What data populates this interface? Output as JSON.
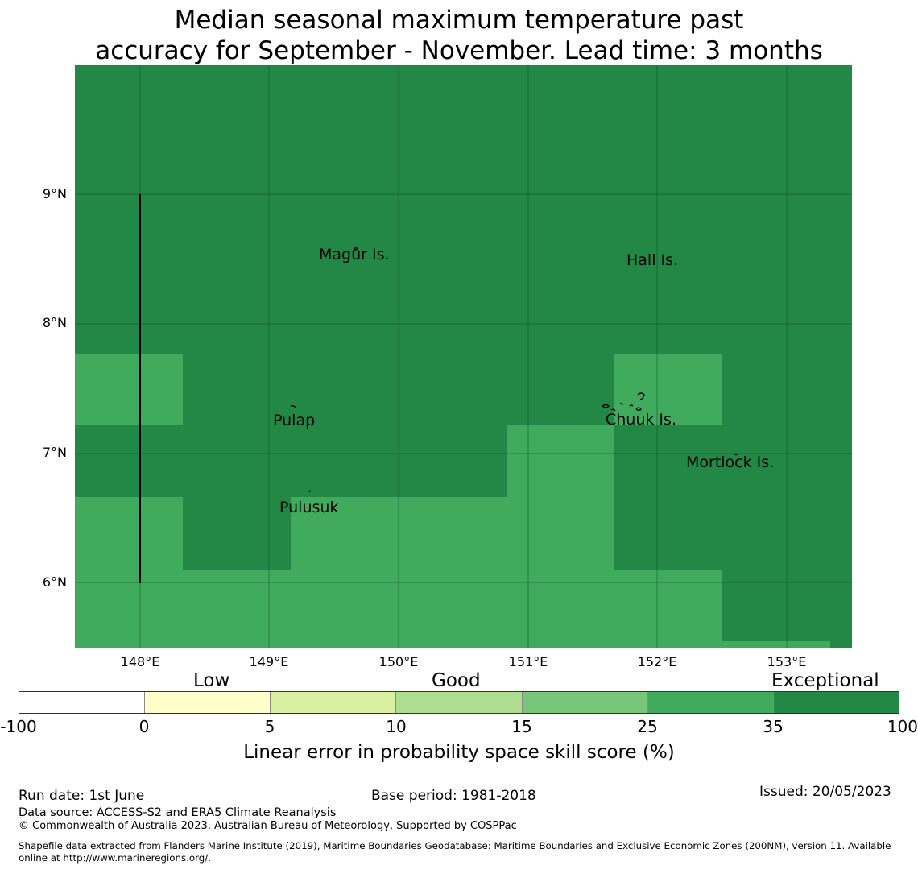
{
  "title": {
    "line1": "Median seasonal maximum temperature past",
    "line2": "accuracy for September - November. Lead time: 3 months"
  },
  "map": {
    "lat_ticks": [
      "9°N",
      "8°N",
      "7°N",
      "6°N"
    ],
    "lon_ticks": [
      "148°E",
      "149°E",
      "150°E",
      "151°E",
      "152°E",
      "153°E"
    ],
    "places": [
      {
        "name": "Magur Is."
      },
      {
        "name": "Hall Is."
      },
      {
        "name": "Pulap"
      },
      {
        "name": "Chuuk Is."
      },
      {
        "name": "Mortlock Is."
      },
      {
        "name": "Pulusuk"
      }
    ],
    "colors": {
      "exceptional": "#238845",
      "good_high": "#41ab5d"
    }
  },
  "colorbar": {
    "categories": [
      "Low",
      "Good",
      "Exceptional"
    ],
    "ticks": [
      "-100",
      "0",
      "5",
      "10",
      "15",
      "25",
      "35",
      "100"
    ],
    "colors": [
      "#ffffff",
      "#ffffcc",
      "#d9f0a3",
      "#addd8e",
      "#78c679",
      "#41ab5d",
      "#238845"
    ],
    "label": "Linear error in probability space skill score (%)"
  },
  "footer": {
    "run_date": "Run date: 1st June",
    "base_period": "Base period: 1981-2018",
    "issued": "Issued: 20/05/2023",
    "data_source": "Data source: ACCESS-S2 and ERA5 Climate Reanalysis",
    "copyright": "© Commonwealth of Australia 2023, Australian Bureau of Meteorology, Supported by COSPPac",
    "shapefile_line1": "Shapefile data extracted from Flanders Marine Institute (2019), Maritime Boundaries Geodatabase: Maritime Boundaries and Exclusive Economic Zones (200NM), version 11. Available",
    "shapefile_line2": "online at http://www.marineregions.org/."
  }
}
